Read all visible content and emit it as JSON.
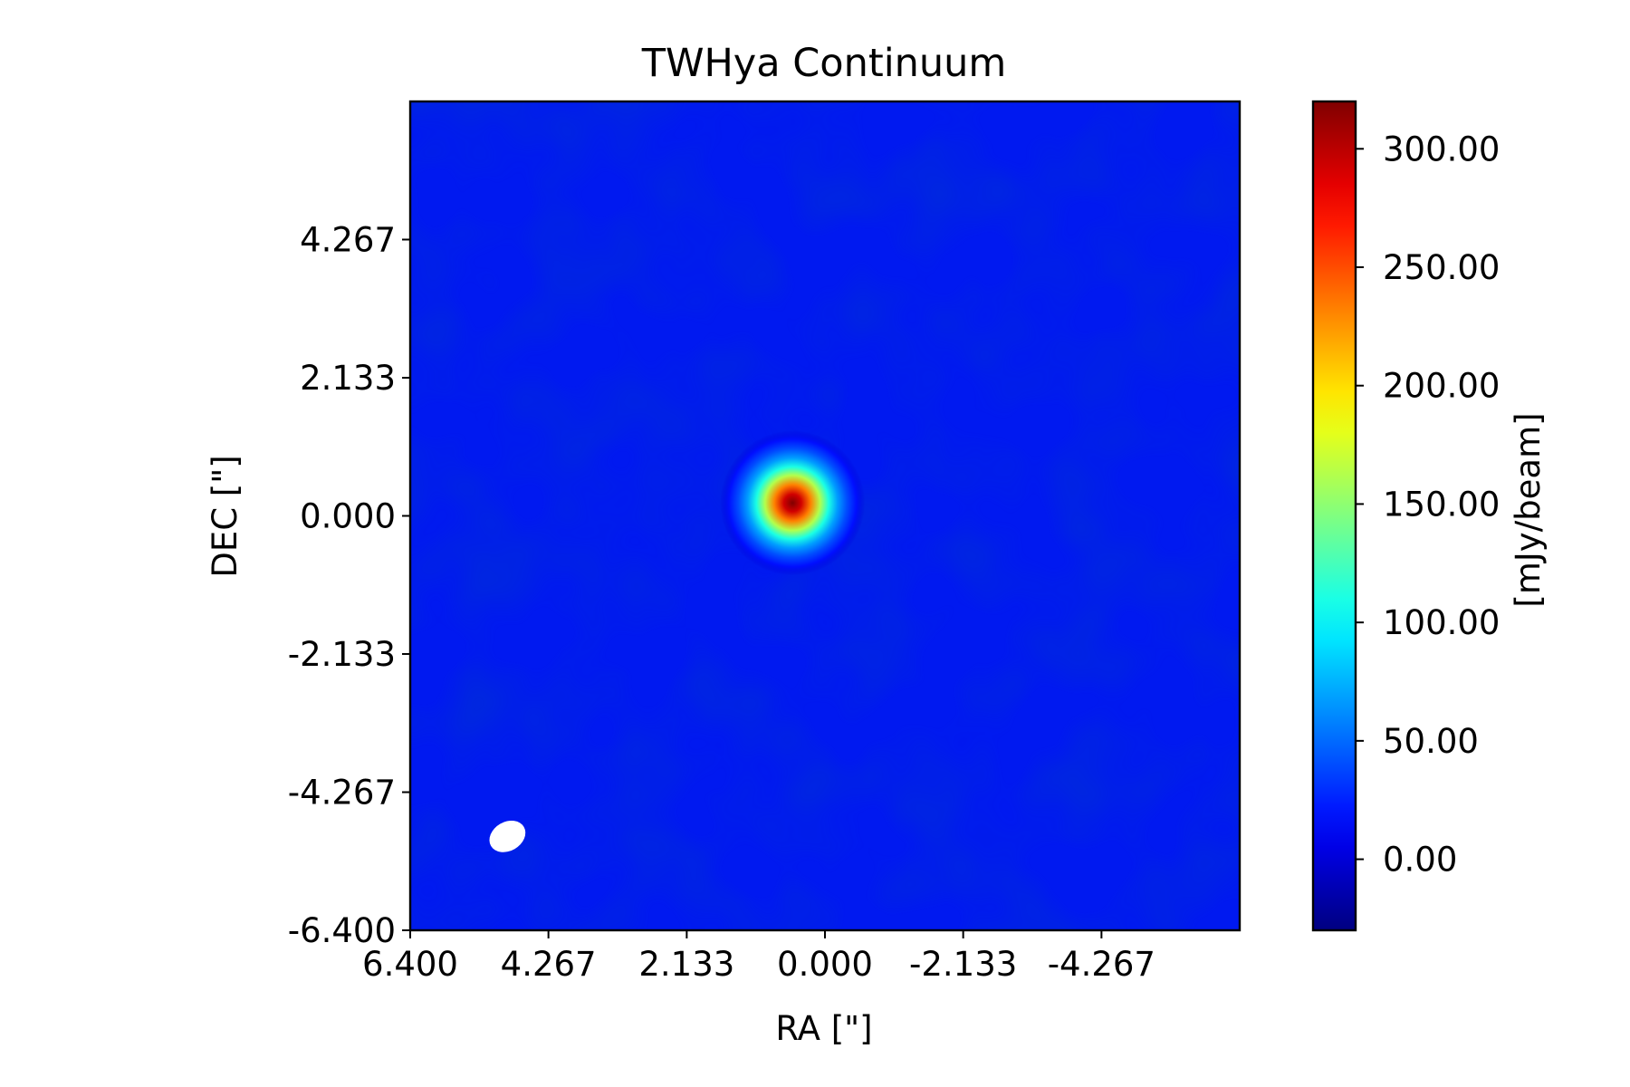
{
  "chart_data": {
    "type": "heatmap",
    "title": "TWHya Continuum",
    "xlabel": "RA [\"]",
    "ylabel": "DEC [\"]",
    "x_ticks": [
      "6.400",
      "4.267",
      "2.133",
      "0.000",
      "-2.133",
      "-4.267"
    ],
    "x_tick_values": [
      6.4,
      4.267,
      2.133,
      0.0,
      -2.133,
      -4.267
    ],
    "y_ticks": [
      "4.267",
      "2.133",
      "0.000",
      "-2.133",
      "-4.267",
      "-6.400"
    ],
    "y_tick_values": [
      4.267,
      2.133,
      0.0,
      -2.133,
      -4.267,
      -6.4
    ],
    "xlim": [
      6.4,
      -6.4
    ],
    "ylim": [
      -6.4,
      6.4
    ],
    "colorbar": {
      "label": "[mJy/beam]",
      "ticks": [
        "300.00",
        "250.00",
        "200.00",
        "150.00",
        "100.00",
        "50.00",
        "0.00"
      ],
      "tick_values": [
        300,
        250,
        200,
        150,
        100,
        50,
        0
      ],
      "range": [
        -30,
        320
      ],
      "colormap": "jet"
    },
    "source": {
      "ra": 0.5,
      "dec": 0.2,
      "peak": 320
    },
    "beam": {
      "ra": 4.9,
      "dec": -4.95,
      "fill": "#ffffff"
    },
    "background_level": 0,
    "grid": false
  }
}
